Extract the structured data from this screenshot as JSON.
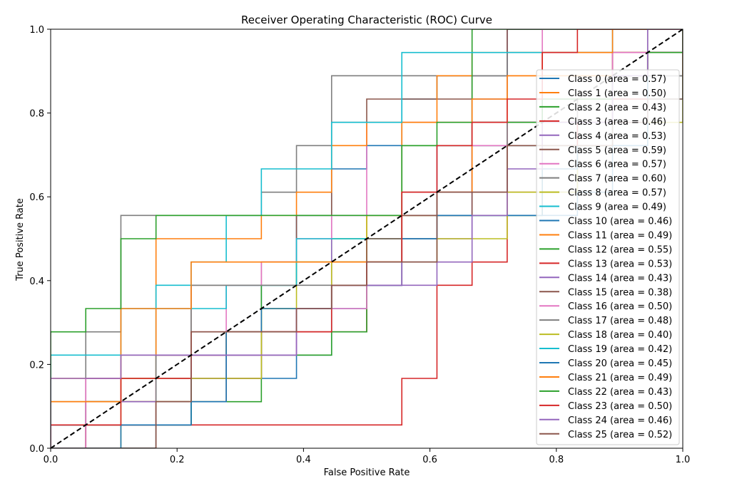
{
  "chart_data": {
    "type": "line",
    "title": "Receiver Operating Characteristic (ROC) Curve",
    "xlabel": "False Positive Rate",
    "ylabel": "True Positive Rate",
    "xlim": [
      0.0,
      1.0
    ],
    "ylim": [
      0.0,
      1.0
    ],
    "xticks": [
      "0.0",
      "0.2",
      "0.4",
      "0.6",
      "0.8",
      "1.0"
    ],
    "yticks": [
      "0.0",
      "0.2",
      "0.4",
      "0.6",
      "0.8",
      "1.0"
    ],
    "grid": false,
    "legend_position": "right",
    "diagonal": {
      "x": [
        0,
        1
      ],
      "y": [
        0,
        1
      ],
      "color": "#000000",
      "style": "dashed"
    },
    "series": [
      {
        "name": "Class 0 (area = 0.57)",
        "color": "#1f77b4",
        "auc": 0.57
      },
      {
        "name": "Class 1 (area = 0.50)",
        "color": "#ff7f0e",
        "auc": 0.5
      },
      {
        "name": "Class 2 (area = 0.43)",
        "color": "#2ca02c",
        "auc": 0.43
      },
      {
        "name": "Class 3 (area = 0.46)",
        "color": "#d62728",
        "auc": 0.46
      },
      {
        "name": "Class 4 (area = 0.53)",
        "color": "#9467bd",
        "auc": 0.53
      },
      {
        "name": "Class 5 (area = 0.59)",
        "color": "#8c564b",
        "auc": 0.59
      },
      {
        "name": "Class 6 (area = 0.57)",
        "color": "#e377c2",
        "auc": 0.57
      },
      {
        "name": "Class 7 (area = 0.60)",
        "color": "#7f7f7f",
        "auc": 0.6
      },
      {
        "name": "Class 8 (area = 0.57)",
        "color": "#bcbd22",
        "auc": 0.57
      },
      {
        "name": "Class 9 (area = 0.49)",
        "color": "#17becf",
        "auc": 0.49
      },
      {
        "name": "Class 10 (area = 0.46)",
        "color": "#1f77b4",
        "auc": 0.46
      },
      {
        "name": "Class 11 (area = 0.49)",
        "color": "#ff7f0e",
        "auc": 0.49
      },
      {
        "name": "Class 12 (area = 0.55)",
        "color": "#2ca02c",
        "auc": 0.55
      },
      {
        "name": "Class 13 (area = 0.53)",
        "color": "#d62728",
        "auc": 0.53
      },
      {
        "name": "Class 14 (area = 0.43)",
        "color": "#9467bd",
        "auc": 0.43
      },
      {
        "name": "Class 15 (area = 0.38)",
        "color": "#8c564b",
        "auc": 0.38
      },
      {
        "name": "Class 16 (area = 0.50)",
        "color": "#e377c2",
        "auc": 0.5
      },
      {
        "name": "Class 17 (area = 0.48)",
        "color": "#7f7f7f",
        "auc": 0.48
      },
      {
        "name": "Class 18 (area = 0.40)",
        "color": "#bcbd22",
        "auc": 0.4
      },
      {
        "name": "Class 19 (area = 0.42)",
        "color": "#17becf",
        "auc": 0.42
      },
      {
        "name": "Class 20 (area = 0.45)",
        "color": "#1f77b4",
        "auc": 0.45
      },
      {
        "name": "Class 21 (area = 0.49)",
        "color": "#ff7f0e",
        "auc": 0.49
      },
      {
        "name": "Class 22 (area = 0.43)",
        "color": "#2ca02c",
        "auc": 0.43
      },
      {
        "name": "Class 23 (area = 0.50)",
        "color": "#d62728",
        "auc": 0.5
      },
      {
        "name": "Class 24 (area = 0.46)",
        "color": "#9467bd",
        "auc": 0.46
      },
      {
        "name": "Class 25 (area = 0.52)",
        "color": "#8c564b",
        "auc": 0.52
      }
    ]
  }
}
